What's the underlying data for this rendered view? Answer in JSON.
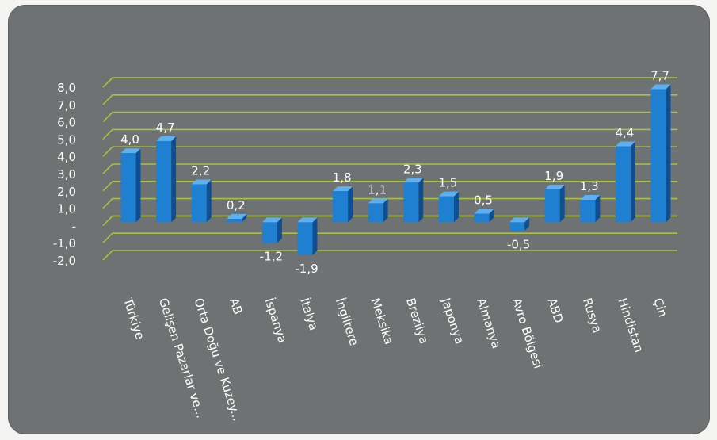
{
  "chart_data": {
    "type": "bar",
    "categories": [
      "Türkiye",
      "Gelişen Pazarlar ve...",
      "Orta Doğu ve Kuzey...",
      "AB",
      "İspanya",
      "İtalya",
      "İngiltere",
      "Meksika",
      "Brezilya",
      "Japonya",
      "Almanya",
      "Avro Bölgesi",
      "ABD",
      "Rusya",
      "Hindistan",
      "Çin"
    ],
    "values": [
      4.0,
      4.7,
      2.2,
      0.2,
      -1.2,
      -1.9,
      1.8,
      1.1,
      2.3,
      1.5,
      0.5,
      -0.5,
      1.9,
      1.3,
      4.4,
      7.7
    ],
    "value_labels": [
      "4,0",
      "4,7",
      "2,2",
      "0,2",
      "-1,2",
      "-1,9",
      "1,8",
      "1,1",
      "2,3",
      "1,5",
      "0,5",
      "-0,5",
      "1,9",
      "1,3",
      "4,4",
      "7,7"
    ],
    "y_ticks": [
      8,
      7,
      6,
      5,
      4,
      3,
      2,
      1,
      0,
      -1,
      -2
    ],
    "y_tick_labels": [
      "8,0",
      "7,0",
      "6,0",
      "5,0",
      "4,0",
      "3,0",
      "2,0",
      "1,0",
      "-",
      "-1,0",
      "-2,0"
    ],
    "ylim": [
      -2,
      8
    ],
    "title": "",
    "xlabel": "",
    "ylabel": "",
    "grid": true,
    "colors": {
      "bar": "#1f7fd0",
      "bar_side": "#0f4f91",
      "bar_top": "#5fb0f0",
      "grid": "#a8c23c",
      "background": "#6f7272",
      "text": "#ffffff"
    }
  }
}
